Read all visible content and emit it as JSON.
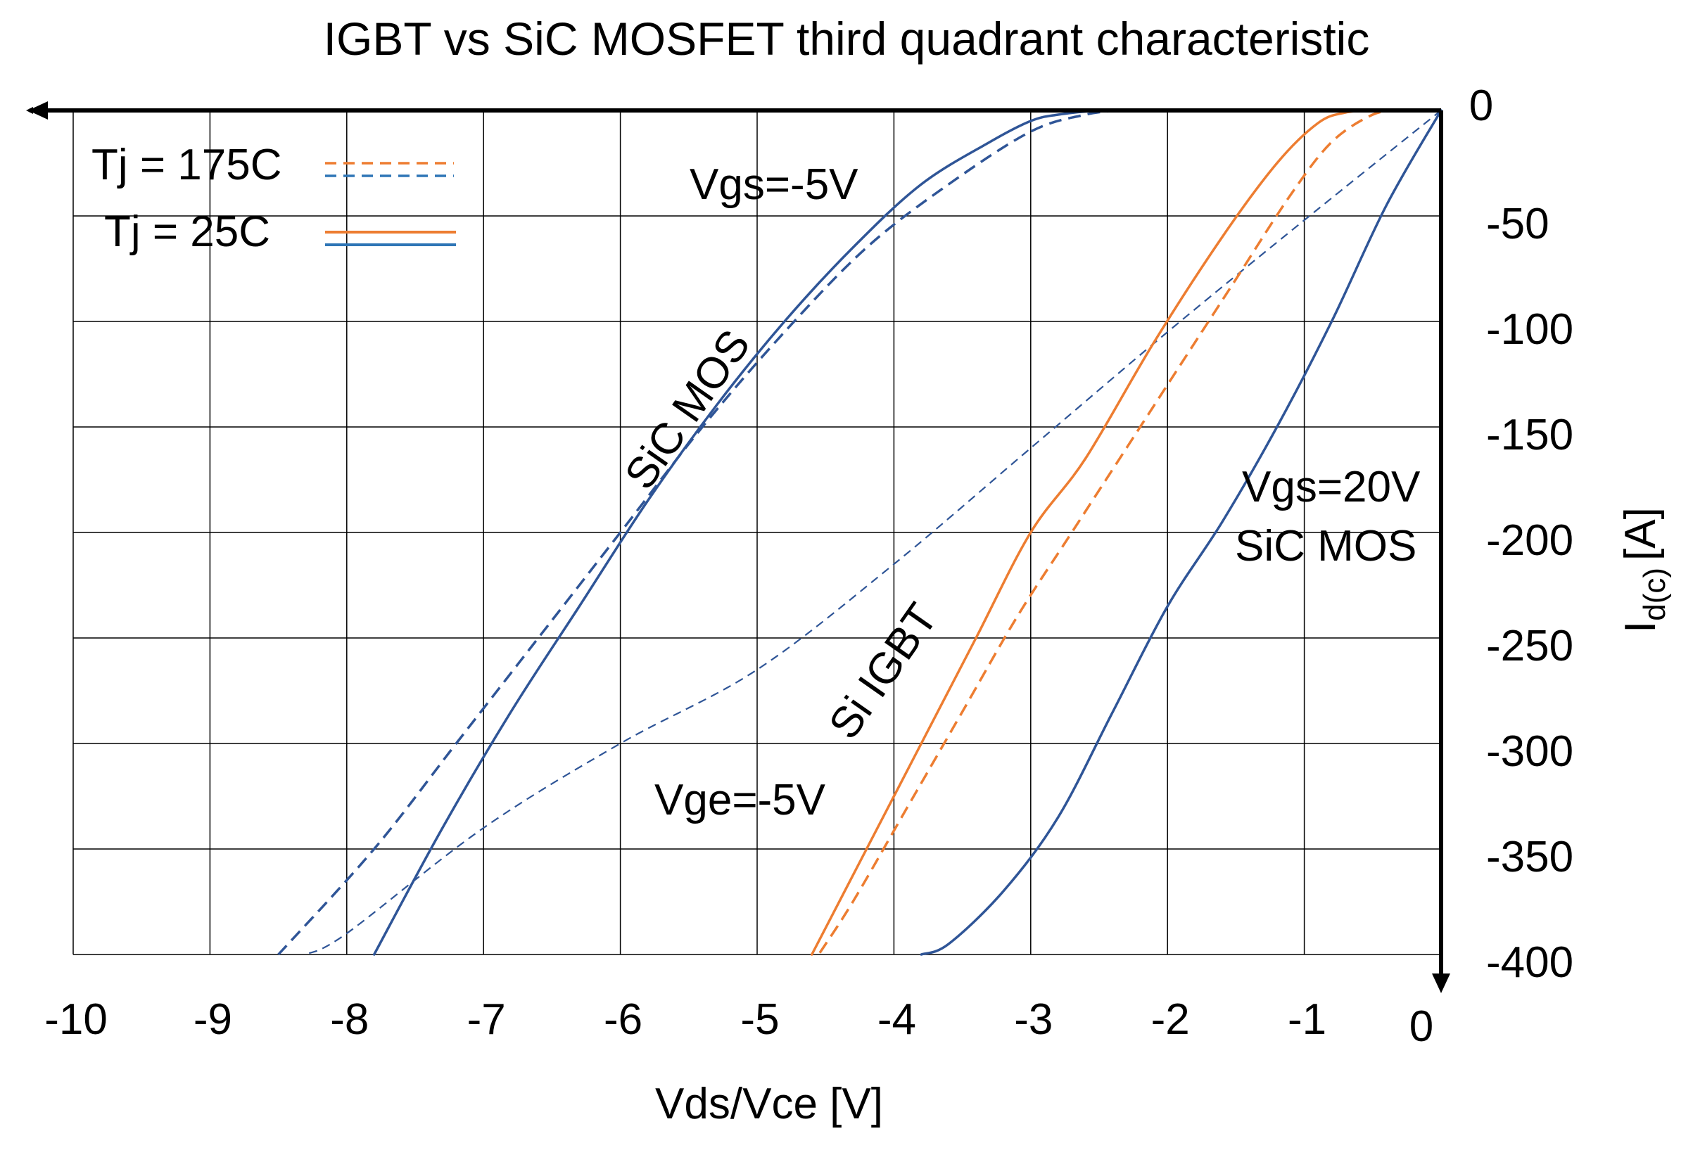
{
  "chart_data": {
    "type": "line",
    "title": "IGBT vs SiC MOSFET third quadrant characteristic",
    "xlabel": "Vds/Vce [V]",
    "ylabel_main": "I",
    "ylabel_sub": "d(c)",
    "ylabel_unit": "[A]",
    "xlim": [
      -10,
      0
    ],
    "ylim": [
      -400,
      0
    ],
    "x_ticks": [
      -10,
      -9,
      -8,
      -7,
      -6,
      -5,
      -4,
      -3,
      -2,
      -1,
      0
    ],
    "y_ticks": [
      0,
      -50,
      -100,
      -150,
      -200,
      -250,
      -300,
      -350,
      -400
    ],
    "grid": true,
    "axis_color": "#000000",
    "legend": {
      "placement": "top-left",
      "entries": [
        {
          "label": "Tj = 175C",
          "style": "dashed",
          "colors": [
            "#ED7D31",
            "#2E75B6"
          ]
        },
        {
          "label": "Tj = 25C",
          "style": "solid",
          "colors": [
            "#ED7D31",
            "#2E75B6"
          ]
        }
      ]
    },
    "annotations": [
      {
        "id": "vgs-neg5",
        "text": "Vgs=-5V"
      },
      {
        "id": "sic-mos-1",
        "text": "SiC MOS"
      },
      {
        "id": "si-igbt",
        "text": "Si IGBT"
      },
      {
        "id": "vge-neg5",
        "text": "Vge=-5V"
      },
      {
        "id": "vgs-20",
        "text": "Vgs=20V"
      },
      {
        "id": "sic-mos-2",
        "text": "SiC MOS"
      }
    ],
    "series": [
      {
        "group": "SiC MOS Vgs=-5V",
        "temp": "25C",
        "style": "solid",
        "width": 3.5,
        "color": "#2F5597",
        "x": [
          -2.35,
          -2.5,
          -2.8,
          -3.0,
          -3.3,
          -3.8,
          -4.3,
          -4.8,
          -5.3,
          -5.8,
          -6.3,
          -6.8,
          -7.3,
          -7.8
        ],
        "y": [
          0,
          0,
          -2,
          -5,
          -15,
          -35,
          -65,
          -100,
          -140,
          -185,
          -235,
          -285,
          -340,
          -400
        ]
      },
      {
        "group": "SiC MOS Vgs=-5V",
        "temp": "175C",
        "style": "dashed",
        "width": 3.5,
        "color": "#2F5597",
        "x": [
          -2.35,
          -2.6,
          -3.0,
          -3.6,
          -4.2,
          -4.8,
          -5.4,
          -6.0,
          -6.6,
          -7.2,
          -7.8,
          -8.5
        ],
        "y": [
          0,
          -2,
          -10,
          -35,
          -65,
          -105,
          -150,
          -200,
          -250,
          -300,
          -350,
          -400
        ]
      },
      {
        "group": "SiC MOS Vgs=20V",
        "temp": "25C",
        "style": "solid",
        "width": 3.5,
        "color": "#2F5597",
        "x": [
          0,
          -0.4,
          -0.8,
          -1.2,
          -1.6,
          -2.0,
          -2.4,
          -2.8,
          -3.2,
          -3.6,
          -3.8
        ],
        "y": [
          0,
          -45,
          -100,
          -150,
          -195,
          -235,
          -285,
          -335,
          -370,
          -395,
          -400
        ]
      },
      {
        "group": "SiC MOS Vgs=20V",
        "temp": "175C",
        "style": "dashed",
        "width": 2.2,
        "color": "#2F5597",
        "x": [
          0,
          -1,
          -2,
          -3,
          -4,
          -5,
          -6,
          -7,
          -8,
          -8.3
        ],
        "y": [
          0,
          -52,
          -105,
          -160,
          -215,
          -265,
          -300,
          -340,
          -390,
          -400
        ]
      },
      {
        "group": "Si IGBT Vge=-5V",
        "temp": "25C",
        "style": "solid",
        "width": 3.5,
        "color": "#ED7D31",
        "x": [
          -0.5,
          -0.7,
          -0.9,
          -1.2,
          -1.6,
          -2.1,
          -2.6,
          -3.0,
          -3.4,
          -3.8,
          -4.2,
          -4.6
        ],
        "y": [
          0,
          -1,
          -6,
          -25,
          -60,
          -110,
          -165,
          -200,
          -250,
          -300,
          -350,
          -400
        ]
      },
      {
        "group": "Si IGBT Vge=-5V",
        "temp": "175C",
        "style": "dashed",
        "width": 3.5,
        "color": "#ED7D31",
        "x": [
          -0.3,
          -0.5,
          -0.8,
          -1.1,
          -1.5,
          -1.9,
          -2.3,
          -2.7,
          -3.1,
          -3.5,
          -3.9,
          -4.3,
          -4.55
        ],
        "y": [
          0,
          -2,
          -15,
          -40,
          -80,
          -120,
          -160,
          -200,
          -240,
          -285,
          -330,
          -375,
          -400
        ]
      }
    ]
  }
}
